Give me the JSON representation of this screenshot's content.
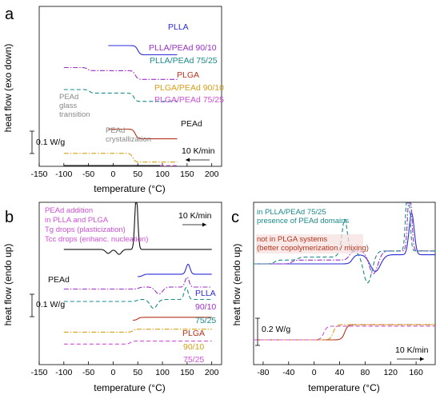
{
  "chart_data": [
    {
      "panel": "a",
      "type": "line",
      "xlabel": "temperature (°C)",
      "ylabel": "heat flow (exo down)",
      "xlim": [
        -150,
        220
      ],
      "xticks": [
        -150,
        -100,
        -50,
        0,
        50,
        100,
        150,
        200
      ],
      "scale_bar": "0.1 W/g",
      "rate": "10 K/min",
      "series": [
        {
          "name": "PLLA",
          "color": "#2b2bd9",
          "style": "solid",
          "xrange": [
            -10,
            130
          ],
          "offset": 1.0,
          "features": [
            {
              "type": "step",
              "at": 50,
              "height": -0.21
            }
          ]
        },
        {
          "name": "PLLA/PEAd 90/10",
          "color": "#9b2fc9",
          "style": "dashdot",
          "xrange": [
            -100,
            130
          ],
          "offset": 0.5,
          "features": [
            {
              "type": "step",
              "at": -52,
              "height": -0.07
            },
            {
              "type": "step",
              "at": 45,
              "height": -0.2
            }
          ]
        },
        {
          "name": "PLLA/PEAd 75/25",
          "color": "#1b8a8a",
          "style": "dashed",
          "xrange": [
            -100,
            130
          ],
          "offset": 0.0,
          "features": [
            {
              "type": "step",
              "at": -48,
              "height": -0.08
            },
            {
              "type": "step",
              "at": 42,
              "height": -0.19
            }
          ]
        },
        {
          "name": "PLGA",
          "color": "#b5341b",
          "style": "solid",
          "xrange": [
            -10,
            130
          ],
          "offset": -0.9,
          "features": [
            {
              "type": "step",
              "at": 45,
              "height": -0.22
            }
          ]
        },
        {
          "name": "PLGA/PEAd 90/10",
          "color": "#d4a017",
          "style": "dashdot",
          "xrange": [
            -100,
            130
          ],
          "offset": -1.45,
          "features": [
            {
              "type": "step",
              "at": 40,
              "height": -0.2
            }
          ]
        },
        {
          "name": "PLGA/PEAd 75/25",
          "color": "#cf4fd6",
          "style": "dashed",
          "xrange": [
            -100,
            130
          ],
          "offset": -1.9,
          "features": [
            {
              "type": "step",
              "at": 38,
              "height": -0.2
            }
          ]
        },
        {
          "name": "PEAd",
          "color": "#111111",
          "style": "solid",
          "xrange": [
            -100,
            95
          ],
          "offset": -2.6,
          "features": [
            {
              "type": "step",
              "at": -45,
              "height": -0.06
            },
            {
              "type": "peak",
              "at": 0,
              "height": -1.55,
              "width": 6
            }
          ]
        }
      ],
      "annotations": [
        {
          "text": [
            "PEAd",
            "glass",
            "transition"
          ],
          "x": -75
        },
        {
          "text": [
            "PEAd",
            "crystallization"
          ],
          "x": 5
        }
      ]
    },
    {
      "panel": "b",
      "type": "line",
      "xlabel": "temperature (°C)",
      "ylabel": "heat flow (endo up)",
      "xlim": [
        -150,
        220
      ],
      "xticks": [
        -150,
        -100,
        -50,
        0,
        50,
        100,
        150,
        200
      ],
      "scale_bar": "0.1 W/g",
      "rate": "10 K/min",
      "note_lines": [
        "PEAd addition",
        "in PLLA and PLGA",
        "Tg drops (plasticization)",
        "Tcc drops (enhanc. nucleation)"
      ],
      "series": [
        {
          "name": "PEAd",
          "color": "#111111",
          "style": "solid",
          "xrange": [
            -100,
            200
          ],
          "offset": 1.55,
          "features": [
            {
              "type": "peak",
              "at": -10,
              "height": -0.08,
              "width": 5
            },
            {
              "type": "peak",
              "at": 12,
              "height": -0.1,
              "width": 5
            },
            {
              "type": "peak",
              "at": 47,
              "height": 1.1,
              "width": 3
            }
          ]
        },
        {
          "name": "PLLA",
          "color": "#2b2bd9",
          "style": "solid",
          "xrange": [
            50,
            200
          ],
          "offset": 1.0,
          "features": [
            {
              "type": "step",
              "at": 60,
              "height": 0.05
            },
            {
              "type": "peak",
              "at": 152,
              "height": 0.2,
              "width": 4
            }
          ]
        },
        {
          "name": "90/10",
          "color": "#9b2fc9",
          "style": "dashdot",
          "xrange": [
            -100,
            200
          ],
          "offset": 0.75,
          "features": [
            {
              "type": "step",
              "at": 52,
              "height": 0.04
            },
            {
              "type": "peak",
              "at": 93,
              "height": -0.14,
              "width": 7
            },
            {
              "type": "peak",
              "at": 150,
              "height": 0.2,
              "width": 4
            }
          ]
        },
        {
          "name": "75/25",
          "color": "#1b8a8a",
          "style": "dashed",
          "xrange": [
            -100,
            200
          ],
          "offset": 0.5,
          "features": [
            {
              "type": "step",
              "at": 48,
              "height": 0.04
            },
            {
              "type": "peak",
              "at": 82,
              "height": -0.18,
              "width": 7
            },
            {
              "type": "peak",
              "at": 148,
              "height": 0.24,
              "width": 4
            }
          ]
        },
        {
          "name": "PLGA",
          "color": "#b5341b",
          "style": "solid",
          "xrange": [
            40,
            200
          ],
          "offset": 0.12,
          "features": [
            {
              "type": "step",
              "at": 50,
              "height": 0.06
            }
          ]
        },
        {
          "name": "90/10",
          "color": "#d4a017",
          "style": "dashdot",
          "xrange": [
            -100,
            200
          ],
          "offset": -0.12,
          "features": [
            {
              "type": "step",
              "at": 40,
              "height": 0.06
            }
          ]
        },
        {
          "name": "75/25",
          "color": "#cf4fd6",
          "style": "dashed",
          "xrange": [
            -100,
            200
          ],
          "offset": -0.36,
          "features": [
            {
              "type": "step",
              "at": 35,
              "height": 0.06
            }
          ]
        }
      ]
    },
    {
      "panel": "c",
      "type": "line",
      "xlabel": "temperature (°C)",
      "ylabel": "heat flow (endo up)",
      "xlim": [
        -95,
        190
      ],
      "xticks": [
        -80,
        -40,
        0,
        40,
        80,
        120,
        160
      ],
      "scale_bar": "0.2 W/g",
      "rate": "10 K/min",
      "notes": [
        {
          "lines": [
            "in PLLA/PEAd 75/25",
            "presence of PEAd domains"
          ],
          "color": "#1b8a8a"
        },
        {
          "lines": [
            "not in PLGA systems",
            "(better copolymerization / mixing)"
          ],
          "color": "#b5341b"
        }
      ],
      "series": [
        {
          "name": "PLLA",
          "color": "#2b2bd9",
          "style": "solid",
          "xrange": [
            -95,
            190
          ],
          "offset": 1.0,
          "features": [
            {
              "type": "step",
              "at": 60,
              "height": 0.12
            },
            {
              "type": "peak",
              "at": 96,
              "height": -0.22,
              "width": 8
            },
            {
              "type": "peak",
              "at": 153,
              "height": 0.55,
              "width": 4
            }
          ]
        },
        {
          "name": "PLLA/PEAd 90/10",
          "color": "#9b2fc9",
          "style": "dashdot",
          "xrange": [
            -95,
            190
          ],
          "offset": 1.0,
          "features": [
            {
              "type": "step",
              "at": -35,
              "height": 0.05
            },
            {
              "type": "step",
              "at": 55,
              "height": 0.12
            },
            {
              "type": "peak",
              "at": 93,
              "height": -0.3,
              "width": 7
            },
            {
              "type": "peak",
              "at": 150,
              "height": 0.85,
              "width": 3
            }
          ]
        },
        {
          "name": "PLLA/PEAd 75/25",
          "color": "#1b8a8a",
          "style": "dashed",
          "xrange": [
            -95,
            190
          ],
          "offset": 1.0,
          "features": [
            {
              "type": "step",
              "at": -62,
              "height": 0.05
            },
            {
              "type": "step",
              "at": -25,
              "height": 0.04
            },
            {
              "type": "step",
              "at": 38,
              "height": 0.08
            },
            {
              "type": "peak",
              "at": 48,
              "height": 0.42,
              "width": 4
            },
            {
              "type": "peak",
              "at": 84,
              "height": -0.42,
              "width": 7
            },
            {
              "type": "peak",
              "at": 147,
              "height": 0.95,
              "width": 3
            }
          ]
        },
        {
          "name": "PLGA",
          "color": "#b5341b",
          "style": "solid",
          "xrange": [
            -95,
            190
          ],
          "offset": 0.0,
          "features": [
            {
              "type": "step",
              "at": 48,
              "height": 0.2
            }
          ]
        },
        {
          "name": "PLGA/PEAd 90/10",
          "color": "#d4a017",
          "style": "dashdot",
          "xrange": [
            -95,
            190
          ],
          "offset": 0.0,
          "features": [
            {
              "type": "step",
              "at": 30,
              "height": 0.2
            }
          ]
        },
        {
          "name": "PLGA/PEAd 75/25",
          "color": "#cf4fd6",
          "style": "dashed",
          "xrange": [
            -95,
            190
          ],
          "offset": 0.0,
          "features": [
            {
              "type": "step",
              "at": 15,
              "height": 0.18
            }
          ]
        }
      ]
    }
  ]
}
